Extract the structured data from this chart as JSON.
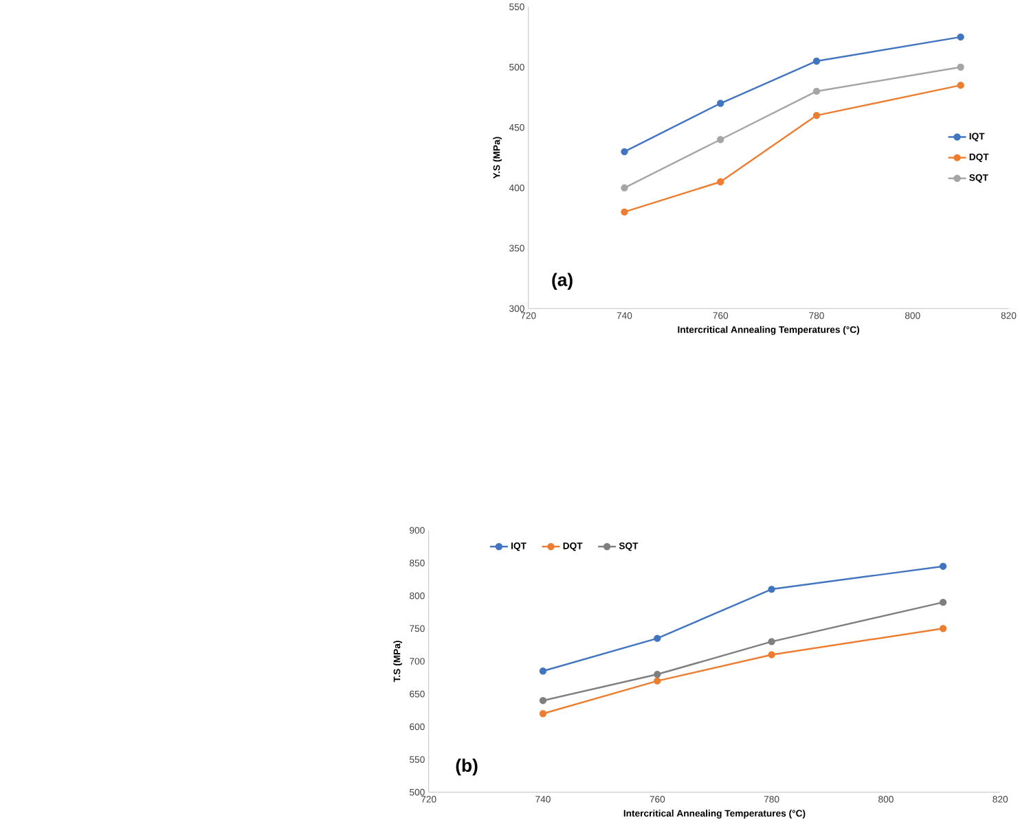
{
  "chart_data": [
    {
      "type": "line",
      "xlabel": "Intercritical Annealing Temperatures (°C)",
      "ylabel": "Y.S (MPa)",
      "x": [
        740,
        760,
        780,
        810
      ],
      "xlim": [
        720,
        820
      ],
      "xticks": [
        720,
        740,
        760,
        780,
        800,
        820
      ],
      "ylim": [
        300,
        550
      ],
      "yticks": [
        300,
        350,
        400,
        450,
        500,
        550
      ],
      "marker": "circle",
      "legend": "right",
      "annotations": [
        "(a)"
      ],
      "series": [
        {
          "name": "IQT",
          "color": "#4275c0",
          "values": [
            430,
            470,
            505,
            525
          ]
        },
        {
          "name": "DQT",
          "color": "#ed7d31",
          "values": [
            380,
            405,
            460,
            485
          ]
        },
        {
          "name": "SQT",
          "color": "#a5a5a5",
          "values": [
            400,
            440,
            480,
            500
          ]
        }
      ]
    },
    {
      "type": "line",
      "xlabel": "Intercritical Annealing Temperatures (°C)",
      "ylabel": "T.S (MPa)",
      "x": [
        740,
        760,
        780,
        810
      ],
      "xlim": [
        720,
        820
      ],
      "xticks": [
        720,
        740,
        760,
        780,
        800,
        820
      ],
      "ylim": [
        500,
        900
      ],
      "yticks": [
        500,
        550,
        600,
        650,
        700,
        750,
        800,
        850,
        900
      ],
      "marker": "circle",
      "legend": "top left",
      "annotations": [
        "(b)"
      ],
      "series": [
        {
          "name": "IQT",
          "color": "#4275c0",
          "values": [
            685,
            735,
            810,
            845
          ]
        },
        {
          "name": "DQT",
          "color": "#ed7d31",
          "values": [
            620,
            670,
            710,
            750
          ]
        },
        {
          "name": "SQT",
          "color": "#7f7f7f",
          "values": [
            640,
            680,
            730,
            790
          ]
        }
      ]
    }
  ]
}
